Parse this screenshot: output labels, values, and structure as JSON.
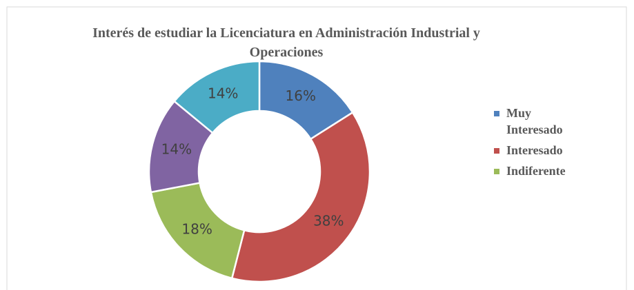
{
  "chart_data": {
    "type": "donut",
    "title": "Interés de estudiar la Licenciatura en Administración Industrial y Operaciones",
    "categories": [
      "Muy Interesado",
      "Interesado",
      "Indiferente",
      null,
      null
    ],
    "values": [
      16,
      38,
      18,
      14,
      14
    ],
    "value_labels": [
      "16%",
      "38%",
      "18%",
      "14%",
      "14%"
    ],
    "colors": [
      "#4f81bd",
      "#c0504d",
      "#9bbb59",
      "#8064a2",
      "#4bacc6"
    ],
    "legend": "right"
  }
}
